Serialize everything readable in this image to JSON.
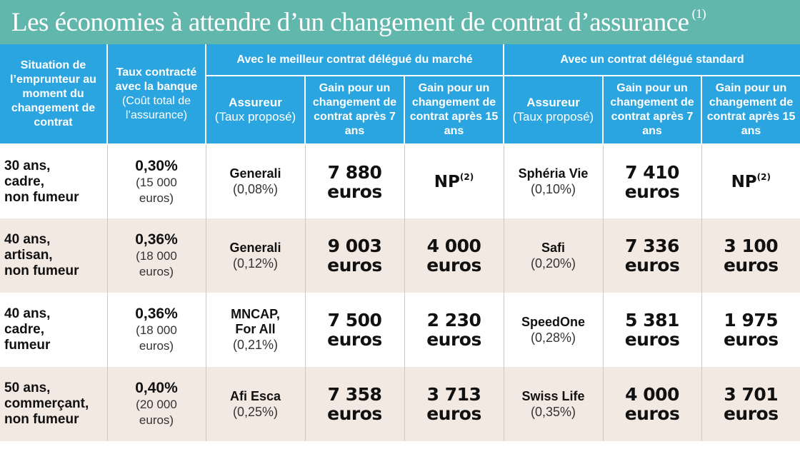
{
  "title": "Les économies à attendre d’un changement de contrat d’assurance",
  "title_note": "(1)",
  "headers": {
    "situation": "Situation de l’emprunteur au moment du changement de contrat",
    "taux_line1": "Taux contracté avec la banque",
    "taux_line2": "(Coût total de l’assurance)",
    "group_best": "Avec le meilleur contrat délégué du marché",
    "group_standard": "Avec un contrat délégué standard",
    "assureur": "Assureur",
    "assureur_sub": "(Taux proposé)",
    "gain7": "Gain pour un changement de contrat après 7 ans",
    "gain15": "Gain pour un changement de contrat après 15 ans"
  },
  "rows": [
    {
      "situation": [
        "30 ans,",
        "cadre,",
        "non fumeur"
      ],
      "rate": "0,30%",
      "cost": [
        "(15 000",
        "euros)"
      ],
      "best_insurer": [
        "Generali"
      ],
      "best_rate": "(0,08%)",
      "best_gain7": [
        "7 880",
        "euros"
      ],
      "best_gain15": [
        "NP"
      ],
      "best_gain15_note": "(2)",
      "std_insurer": [
        "Sphéria Vie"
      ],
      "std_rate": "(0,10%)",
      "std_gain7": [
        "7 410",
        "euros"
      ],
      "std_gain15": [
        "NP"
      ],
      "std_gain15_note": "(2)"
    },
    {
      "situation": [
        "40 ans,",
        "artisan,",
        "non fumeur"
      ],
      "rate": "0,36%",
      "cost": [
        "(18 000",
        "euros)"
      ],
      "best_insurer": [
        "Generali"
      ],
      "best_rate": "(0,12%)",
      "best_gain7": [
        "9 003",
        "euros"
      ],
      "best_gain15": [
        "4 000",
        "euros"
      ],
      "best_gain15_note": "",
      "std_insurer": [
        "Safi"
      ],
      "std_rate": "(0,20%)",
      "std_gain7": [
        "7 336",
        "euros"
      ],
      "std_gain15": [
        "3 100",
        "euros"
      ],
      "std_gain15_note": ""
    },
    {
      "situation": [
        "40 ans,",
        "cadre,",
        "fumeur"
      ],
      "rate": "0,36%",
      "cost": [
        "(18 000",
        "euros)"
      ],
      "best_insurer": [
        "MNCAP,",
        "For All"
      ],
      "best_rate": "(0,21%)",
      "best_gain7": [
        "7 500",
        "euros"
      ],
      "best_gain15": [
        "2 230",
        "euros"
      ],
      "best_gain15_note": "",
      "std_insurer": [
        "SpeedOne"
      ],
      "std_rate": "(0,28%)",
      "std_gain7": [
        "5 381",
        "euros"
      ],
      "std_gain15": [
        "1 975",
        "euros"
      ],
      "std_gain15_note": ""
    },
    {
      "situation": [
        "50 ans,",
        "commerçant,",
        "non fumeur"
      ],
      "rate": "0,40%",
      "cost": [
        "(20 000",
        "euros)"
      ],
      "best_insurer": [
        "Afi Esca"
      ],
      "best_rate": "(0,25%)",
      "best_gain7": [
        "7 358",
        "euros"
      ],
      "best_gain15": [
        "3 713",
        "euros"
      ],
      "best_gain15_note": "",
      "std_insurer": [
        "Swiss Life"
      ],
      "std_rate": "(0,35%)",
      "std_gain7": [
        "4 000",
        "euros"
      ],
      "std_gain15": [
        "3 701",
        "euros"
      ],
      "std_gain15_note": ""
    }
  ]
}
